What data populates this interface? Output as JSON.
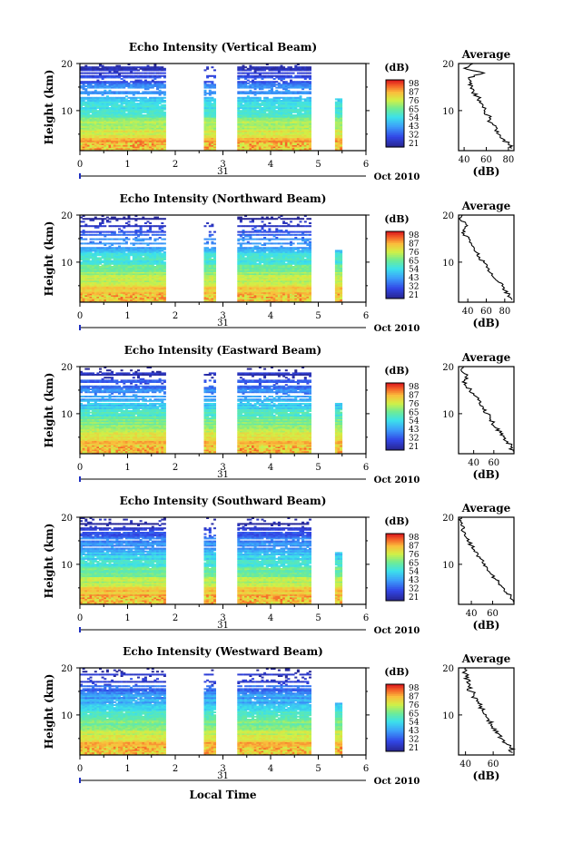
{
  "figure": {
    "bottom_xlabel": "Local Time",
    "date_label": "Oct 2010",
    "day_label": "31",
    "colorbar_label": "(dB)",
    "colorbar_ticks": [
      "98",
      "87",
      "76",
      "65",
      "54",
      "43",
      "32",
      "21"
    ],
    "colors": {
      "missing": "#ffffff",
      "axis": "#000000",
      "profile": "#000000"
    }
  },
  "chart_data": [
    {
      "type": "heatmap",
      "title": "Echo Intensity (Vertical Beam)",
      "ylabel": "Height (km)",
      "xlim": [
        0,
        6
      ],
      "ylim": [
        1.5,
        20
      ],
      "yticks": [
        "20",
        "10"
      ],
      "xticks": [
        "0",
        "1",
        "2",
        "3",
        "4",
        "5",
        "6"
      ],
      "gaps": [
        [
          1.8,
          2.6
        ],
        [
          2.83,
          3.3
        ],
        [
          4.85,
          5.35
        ],
        [
          5.5,
          6
        ]
      ],
      "colorscale_range": [
        21,
        98
      ]
    },
    {
      "type": "line",
      "title": "Average",
      "xlabel": "(dB)",
      "ylabel": "",
      "xlim": [
        35,
        85
      ],
      "ylim": [
        1.5,
        20
      ],
      "xticks": [
        "40",
        "60",
        "80"
      ],
      "yticks": [
        "20",
        "10"
      ],
      "y": [
        20,
        19,
        18,
        17,
        16,
        15,
        14,
        13,
        12,
        11,
        10,
        9,
        8,
        7,
        6,
        5,
        4,
        3,
        2
      ],
      "x": [
        48,
        40,
        58,
        44,
        45,
        47,
        48,
        52,
        55,
        57,
        58,
        62,
        63,
        66,
        69,
        71,
        75,
        80,
        83
      ]
    },
    {
      "type": "heatmap",
      "title": "Echo Intensity (Northward Beam)",
      "ylabel": "Height (km)",
      "xlim": [
        0,
        6
      ],
      "ylim": [
        1.5,
        20
      ],
      "yticks": [
        "20",
        "10"
      ],
      "xticks": [
        "0",
        "1",
        "2",
        "3",
        "4",
        "5",
        "6"
      ],
      "gaps": [
        [
          1.8,
          2.6
        ],
        [
          2.83,
          3.3
        ],
        [
          4.85,
          5.35
        ],
        [
          5.5,
          6
        ]
      ],
      "colorscale_range": [
        21,
        98
      ]
    },
    {
      "type": "line",
      "title": "Average",
      "xlabel": "(dB)",
      "ylabel": "",
      "xlim": [
        30,
        90
      ],
      "ylim": [
        1.5,
        20
      ],
      "xticks": [
        "40",
        "60",
        "80"
      ],
      "yticks": [
        "20",
        "10"
      ],
      "y": [
        20,
        19,
        18,
        17,
        16,
        15,
        14,
        13,
        12,
        11,
        10,
        9,
        8,
        7,
        6,
        5,
        4,
        3,
        2
      ],
      "x": [
        34,
        32,
        38,
        36,
        36,
        41,
        44,
        47,
        50,
        53,
        57,
        60,
        63,
        67,
        72,
        77,
        80,
        85,
        88
      ]
    },
    {
      "type": "heatmap",
      "title": "Echo Intensity (Eastward Beam)",
      "ylabel": "Height (km)",
      "xlim": [
        0,
        6
      ],
      "ylim": [
        1.5,
        20
      ],
      "yticks": [
        "20",
        "10"
      ],
      "xticks": [
        "0",
        "1",
        "2",
        "3",
        "4",
        "5",
        "6"
      ],
      "gaps": [
        [
          1.8,
          2.6
        ],
        [
          2.83,
          3.3
        ],
        [
          4.85,
          5.35
        ],
        [
          5.5,
          6
        ]
      ],
      "colorscale_range": [
        21,
        98
      ]
    },
    {
      "type": "line",
      "title": "Average",
      "xlabel": "(dB)",
      "ylabel": "",
      "xlim": [
        25,
        80
      ],
      "ylim": [
        1.5,
        20
      ],
      "xticks": [
        "40",
        "60"
      ],
      "yticks": [
        "20",
        "10"
      ],
      "y": [
        20,
        19,
        18,
        17,
        16,
        15,
        14,
        13,
        12,
        11,
        10,
        9,
        8,
        7,
        6,
        5,
        4,
        3,
        2
      ],
      "x": [
        30,
        28,
        33,
        31,
        32,
        37,
        40,
        44,
        46,
        49,
        54,
        56,
        59,
        62,
        66,
        70,
        74,
        77,
        79
      ]
    },
    {
      "type": "heatmap",
      "title": "Echo Intensity (Southward Beam)",
      "ylabel": "Height (km)",
      "xlim": [
        0,
        6
      ],
      "ylim": [
        1.5,
        20
      ],
      "yticks": [
        "20",
        "10"
      ],
      "xticks": [
        "0",
        "1",
        "2",
        "3",
        "4",
        "5",
        "6"
      ],
      "gaps": [
        [
          1.8,
          2.6
        ],
        [
          2.83,
          3.3
        ],
        [
          4.85,
          5.35
        ],
        [
          5.5,
          6
        ]
      ],
      "colorscale_range": [
        21,
        98
      ]
    },
    {
      "type": "line",
      "title": "Average",
      "xlabel": "(dB)",
      "ylabel": "",
      "xlim": [
        28,
        80
      ],
      "ylim": [
        1.5,
        20
      ],
      "xticks": [
        "40",
        "60"
      ],
      "yticks": [
        "20",
        "10"
      ],
      "y": [
        20,
        19,
        18,
        17,
        16,
        15,
        14,
        13,
        12,
        11,
        10,
        9,
        8,
        7,
        6,
        5,
        4,
        3,
        2
      ],
      "x": [
        31,
        30,
        33,
        32,
        34,
        36,
        40,
        43,
        46,
        50,
        53,
        55,
        58,
        62,
        66,
        70,
        73,
        77,
        79
      ]
    },
    {
      "type": "heatmap",
      "title": "Echo Intensity (Westward Beam)",
      "ylabel": "Height (km)",
      "xlim": [
        0,
        6
      ],
      "ylim": [
        1.5,
        20
      ],
      "yticks": [
        "20",
        "10"
      ],
      "xticks": [
        "0",
        "1",
        "2",
        "3",
        "4",
        "5",
        "6"
      ],
      "gaps": [
        [
          1.8,
          2.6
        ],
        [
          2.83,
          3.3
        ],
        [
          4.85,
          5.35
        ],
        [
          5.5,
          6
        ]
      ],
      "colorscale_range": [
        21,
        98
      ]
    },
    {
      "type": "line",
      "title": "Average",
      "xlabel": "(dB)",
      "ylabel": "",
      "xlim": [
        35,
        75
      ],
      "ylim": [
        1.5,
        20
      ],
      "xticks": [
        "40",
        "60"
      ],
      "yticks": [
        "20",
        "10"
      ],
      "y": [
        20,
        19,
        18,
        17,
        16,
        15,
        14,
        13,
        12,
        11,
        10,
        9,
        8,
        7,
        6,
        5,
        4,
        3,
        2
      ],
      "x": [
        40,
        38,
        42,
        41,
        42,
        44,
        46,
        48,
        50,
        52,
        55,
        57,
        59,
        62,
        64,
        66,
        69,
        72,
        74
      ]
    }
  ]
}
